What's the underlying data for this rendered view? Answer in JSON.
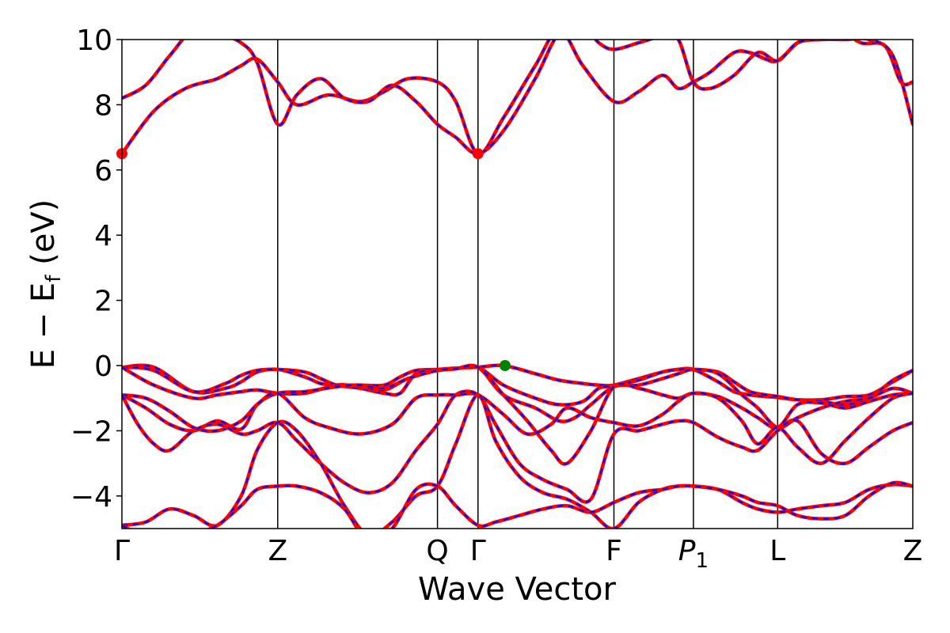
{
  "chart_data": {
    "type": "line",
    "xlabel": "Wave Vector",
    "ylabel": "E − E_f (eV)",
    "ylabel_main": "E  −  E",
    "ylabel_sub": "f",
    "ylabel_tail": " (eV)",
    "ylim": [
      -5,
      10
    ],
    "yticks": [
      -4,
      -2,
      0,
      2,
      4,
      6,
      8,
      10
    ],
    "ytick_labels": [
      "−4",
      "−2",
      "0",
      "2",
      "4",
      "6",
      "8",
      "10"
    ],
    "xlim": [
      0,
      9.95
    ],
    "kpoints": [
      {
        "label": "Γ",
        "x": 0.0,
        "sub": ""
      },
      {
        "label": "Z",
        "x": 1.96,
        "sub": ""
      },
      {
        "label": "Q",
        "x": 3.97,
        "sub": ""
      },
      {
        "label": "Γ",
        "x": 4.48,
        "sub": ""
      },
      {
        "label": "F",
        "x": 6.19,
        "sub": ""
      },
      {
        "label": "P",
        "x": 7.19,
        "sub": "1"
      },
      {
        "label": "L",
        "x": 8.25,
        "sub": ""
      },
      {
        "label": "Z",
        "x": 9.95,
        "sub": ""
      }
    ],
    "series_styles": {
      "calc": "#ff0000",
      "interp": "#0000ff"
    },
    "markers": [
      {
        "name": "cbm",
        "x": 0.0,
        "y": 6.5,
        "color": "#ff0000"
      },
      {
        "name": "cbm",
        "x": 4.48,
        "y": 6.5,
        "color": "#ff0000"
      },
      {
        "name": "vbm",
        "x": 4.82,
        "y": 0.0,
        "color": "#008000"
      }
    ],
    "bands": [
      {
        "x": [
          0,
          0.4,
          0.9,
          1.3,
          1.5,
          1.7,
          1.96,
          2.3,
          2.5,
          2.7,
          3.0,
          3.3,
          3.5,
          3.7,
          3.97,
          4.2,
          4.48,
          4.8,
          5.2,
          5.5,
          5.8,
          6.0,
          6.19,
          6.5,
          6.8,
          7.0,
          7.19,
          7.5,
          7.7,
          7.9,
          8.1,
          8.25,
          8.5,
          8.8,
          9.1,
          9.4,
          9.7,
          9.95
        ],
        "y": [
          -0.05,
          -0.05,
          -0.8,
          -0.7,
          -0.5,
          -0.2,
          -0.12,
          -0.35,
          -0.55,
          -0.6,
          -0.6,
          -0.6,
          -0.35,
          -0.15,
          -0.12,
          -0.08,
          -0.05,
          0.0,
          -0.25,
          -0.45,
          -0.55,
          -0.6,
          -0.6,
          -0.4,
          -0.2,
          -0.12,
          -0.12,
          -0.5,
          -0.8,
          -0.9,
          -0.95,
          -0.98,
          -1.05,
          -1.05,
          -0.95,
          -0.9,
          -0.5,
          -0.15
        ]
      },
      {
        "x": [
          0,
          0.4,
          0.9,
          1.3,
          1.5,
          1.7,
          1.96,
          2.3,
          2.5,
          2.7,
          3.0,
          3.3,
          3.5,
          3.7,
          3.97,
          4.2,
          4.48,
          4.8,
          5.2,
          5.5,
          5.8,
          6.0,
          6.19,
          6.5,
          6.8,
          7.0,
          7.19,
          7.5,
          7.7,
          7.9,
          8.1,
          8.25,
          8.5,
          8.8,
          9.1,
          9.4,
          9.7,
          9.95
        ],
        "y": [
          -0.05,
          -0.15,
          -0.8,
          -0.55,
          -0.3,
          -0.15,
          -0.12,
          -0.2,
          -0.4,
          -0.6,
          -0.7,
          -0.85,
          -0.85,
          -0.25,
          -0.15,
          -0.1,
          -0.05,
          -0.6,
          -1.0,
          -1.2,
          -1.1,
          -0.7,
          -0.62,
          -0.45,
          -0.2,
          -0.12,
          -0.12,
          -0.2,
          -0.5,
          -0.8,
          -0.9,
          -0.95,
          -1.05,
          -1.1,
          -1.2,
          -1.0,
          -0.45,
          -0.15
        ]
      },
      {
        "x": [
          0,
          0.4,
          0.9,
          1.2,
          1.5,
          1.7,
          1.96,
          2.3,
          2.7,
          3.0,
          3.3,
          3.6,
          3.97,
          4.2,
          4.48,
          4.8,
          5.2,
          5.5,
          5.7,
          5.9,
          6.19,
          6.5,
          6.8,
          7.0,
          7.19,
          7.5,
          7.8,
          8.0,
          8.25,
          8.5,
          8.8,
          9.1,
          9.4,
          9.7,
          9.95
        ],
        "y": [
          -0.05,
          -0.6,
          -1.0,
          -0.9,
          -0.8,
          -0.75,
          -0.85,
          -0.85,
          -0.6,
          -0.65,
          -0.75,
          -0.4,
          -0.15,
          -0.1,
          -0.05,
          -0.9,
          -1.3,
          -1.7,
          -1.6,
          -1.2,
          -0.65,
          -0.6,
          -0.4,
          -0.25,
          -0.12,
          -0.25,
          -0.9,
          -1.3,
          -1.9,
          -1.6,
          -1.3,
          -1.1,
          -1.0,
          -0.7,
          -0.85
        ]
      },
      {
        "x": [
          0,
          0.3,
          0.6,
          0.9,
          1.2,
          1.5,
          1.7,
          1.96,
          2.3,
          2.7,
          3.0,
          3.3,
          3.6,
          3.97,
          4.2,
          4.48,
          4.8,
          5.1,
          5.4,
          5.6,
          5.9,
          6.19,
          6.5,
          6.8,
          7.0,
          7.19,
          7.5,
          7.8,
          8.0,
          8.25,
          8.5,
          8.8,
          9.1,
          9.4,
          9.7,
          9.95
        ],
        "y": [
          -0.9,
          -1.3,
          -1.8,
          -2.0,
          -1.7,
          -1.95,
          -1.2,
          -0.85,
          -0.8,
          -0.65,
          -0.6,
          -0.7,
          -0.4,
          -0.15,
          -0.1,
          -0.05,
          -0.9,
          -1.7,
          -2.6,
          -3.0,
          -2.0,
          -0.65,
          -0.7,
          -0.9,
          -1.0,
          -0.85,
          -0.95,
          -1.3,
          -1.6,
          -1.9,
          -1.2,
          -1.15,
          -1.3,
          -1.1,
          -0.9,
          -0.85
        ]
      },
      {
        "x": [
          0,
          0.3,
          0.6,
          0.9,
          1.2,
          1.5,
          1.7,
          1.96,
          2.3,
          2.6,
          3.0,
          3.4,
          3.7,
          3.97,
          4.2,
          4.48,
          4.8,
          5.1,
          5.4,
          5.6,
          5.9,
          6.19,
          6.5,
          6.8,
          7.0,
          7.19,
          7.5,
          7.8,
          8.0,
          8.25,
          8.5,
          8.8,
          9.1,
          9.4,
          9.7,
          9.95
        ],
        "y": [
          -0.9,
          -1.0,
          -1.4,
          -1.9,
          -2.0,
          -1.7,
          -1.2,
          -0.85,
          -1.6,
          -1.9,
          -2.1,
          -1.8,
          -1.0,
          -0.9,
          -0.9,
          -0.9,
          -1.5,
          -2.1,
          -1.8,
          -1.3,
          -1.6,
          -1.75,
          -1.85,
          -1.5,
          -1.1,
          -0.85,
          -1.0,
          -1.7,
          -2.4,
          -1.9,
          -2.5,
          -3.0,
          -2.3,
          -1.6,
          -1.0,
          -0.85
        ]
      },
      {
        "x": [
          0,
          0.2,
          0.4,
          0.6,
          0.9,
          1.2,
          1.5,
          1.7,
          1.96,
          2.2,
          2.5,
          2.8,
          3.1,
          3.4,
          3.7,
          3.97,
          4.2,
          4.48,
          4.7,
          5.0,
          5.3,
          5.6,
          5.9,
          6.19,
          6.5,
          6.8,
          7.0,
          7.19,
          7.5,
          7.8,
          8.0,
          8.25,
          8.5,
          8.8,
          9.1,
          9.4,
          9.7,
          9.95
        ],
        "y": [
          -0.9,
          -1.8,
          -2.4,
          -2.6,
          -2.0,
          -1.8,
          -2.1,
          -2.0,
          -1.75,
          -2.3,
          -3.0,
          -3.6,
          -3.9,
          -3.6,
          -2.6,
          -1.8,
          -0.9,
          -0.9,
          -1.8,
          -3.0,
          -3.5,
          -3.8,
          -4.1,
          -2.1,
          -2.0,
          -1.8,
          -1.7,
          -1.75,
          -2.2,
          -2.5,
          -2.6,
          -2.0,
          -1.7,
          -2.7,
          -3.0,
          -2.5,
          -2.0,
          -1.75
        ]
      },
      {
        "x": [
          0,
          0.3,
          0.6,
          0.9,
          1.2,
          1.5,
          1.7,
          1.96,
          2.2,
          2.5,
          2.8,
          3.1,
          3.4,
          3.7,
          3.97,
          4.2,
          4.48,
          4.7,
          5.0,
          5.3,
          5.6,
          5.9,
          6.19,
          6.5,
          6.8,
          7.0,
          7.19,
          7.5,
          7.8,
          8.0,
          8.25,
          8.5,
          8.8,
          9.1,
          9.4,
          9.7,
          9.95
        ],
        "y": [
          -4.9,
          -4.8,
          -4.4,
          -4.6,
          -4.9,
          -4.0,
          -2.6,
          -1.75,
          -2.0,
          -3.0,
          -4.3,
          -5.2,
          -4.8,
          -4.0,
          -3.7,
          -2.4,
          -0.9,
          -2.3,
          -3.4,
          -3.9,
          -4.1,
          -4.5,
          -5.0,
          -4.2,
          -3.8,
          -3.7,
          -3.7,
          -3.8,
          -4.2,
          -4.4,
          -4.5,
          -4.4,
          -4.3,
          -4.2,
          -3.8,
          -3.65,
          -3.7
        ]
      },
      {
        "x": [
          0,
          0.3,
          0.6,
          0.9,
          1.2,
          1.5,
          1.7,
          1.96,
          2.2,
          2.5,
          2.8,
          3.1,
          3.4,
          3.7,
          3.97,
          4.2,
          4.48,
          4.7,
          5.0,
          5.3,
          5.6,
          5.9,
          6.19,
          6.5,
          6.8,
          7.0,
          7.19,
          7.5,
          7.8,
          8.0,
          8.25,
          8.5,
          8.8,
          9.1,
          9.4,
          9.7,
          9.95
        ],
        "y": [
          -4.9,
          -5.3,
          -5.6,
          -5.2,
          -4.9,
          -4.3,
          -3.8,
          -3.7,
          -3.7,
          -3.9,
          -4.4,
          -5.4,
          -5.0,
          -3.8,
          -3.7,
          -4.3,
          -4.9,
          -4.8,
          -4.6,
          -4.4,
          -4.3,
          -4.5,
          -4.2,
          -3.9,
          -3.8,
          -3.7,
          -3.7,
          -3.8,
          -4.0,
          -4.2,
          -4.3,
          -4.6,
          -4.7,
          -4.6,
          -4.0,
          -3.6,
          -3.7
        ]
      },
      {
        "x": [
          0,
          0.4,
          0.8,
          1.2,
          1.5,
          1.7,
          1.96,
          2.2,
          2.6,
          3.0,
          3.3,
          3.6,
          3.97,
          4.2,
          4.48,
          4.8,
          5.2,
          5.5,
          5.8,
          6.19,
          6.5,
          6.8,
          7.0,
          7.19,
          7.4,
          7.7,
          7.9,
          8.1,
          8.25,
          8.5,
          8.7,
          9.0,
          9.3,
          9.6,
          9.8,
          9.95
        ],
        "y": [
          6.5,
          7.8,
          8.5,
          8.8,
          9.2,
          9.4,
          8.7,
          8.0,
          8.3,
          8.1,
          8.4,
          8.8,
          8.7,
          8.1,
          6.5,
          7.6,
          9.2,
          10.3,
          9.2,
          8.1,
          8.4,
          8.9,
          8.5,
          8.7,
          9.0,
          9.6,
          9.6,
          9.4,
          9.35,
          9.9,
          10.2,
          10.3,
          9.9,
          9.8,
          8.7,
          8.7
        ]
      },
      {
        "x": [
          0,
          0.3,
          0.6,
          0.9,
          1.2,
          1.5,
          1.7,
          1.96,
          2.2,
          2.5,
          2.8,
          3.1,
          3.4,
          3.7,
          3.97,
          4.2,
          4.48,
          4.8,
          5.2,
          5.5,
          5.8,
          6.0,
          6.19,
          6.5,
          6.8,
          7.0,
          7.19,
          7.4,
          7.7,
          8.0,
          8.25,
          8.5,
          8.8,
          9.1,
          9.4,
          9.7,
          9.95
        ],
        "y": [
          8.2,
          8.6,
          9.5,
          10.3,
          10.2,
          9.9,
          9.3,
          7.4,
          8.3,
          8.8,
          8.2,
          8.1,
          8.6,
          8.1,
          7.4,
          7.0,
          6.5,
          7.2,
          8.8,
          10.2,
          10.4,
          9.9,
          9.7,
          9.9,
          10.1,
          10.0,
          8.7,
          8.5,
          8.9,
          9.6,
          9.35,
          9.9,
          10.0,
          10.0,
          10.0,
          9.5,
          7.4
        ]
      }
    ]
  }
}
